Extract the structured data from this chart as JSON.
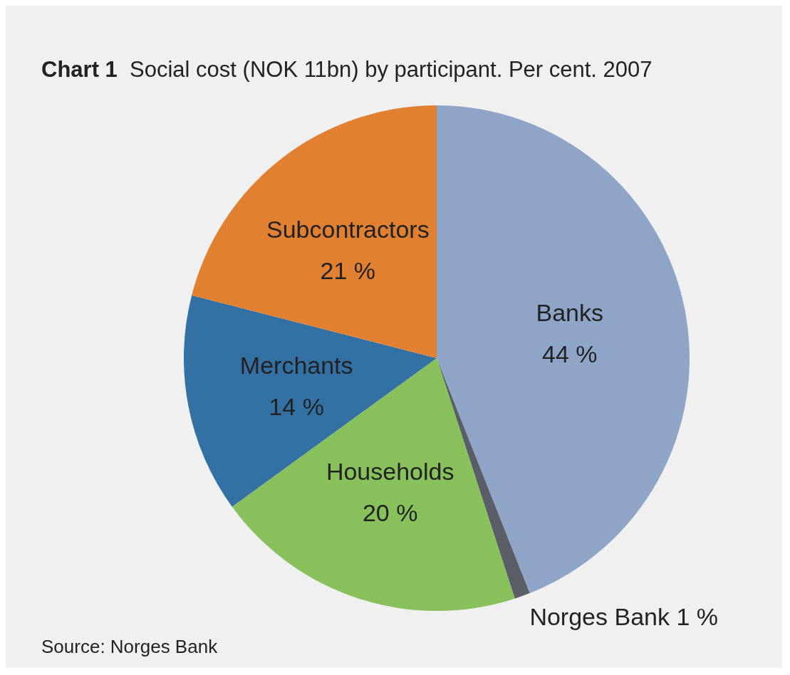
{
  "chart_data": {
    "type": "pie",
    "title": "Chart 1",
    "subtitle": "Social cost (NOK 11bn) by participant. Per cent. 2007",
    "categories": [
      "Banks",
      "Norges Bank",
      "Households",
      "Merchants",
      "Subcontractors"
    ],
    "values": [
      44,
      1,
      20,
      14,
      21
    ],
    "colors": [
      "#8fa5c8",
      "#5a5e66",
      "#88c05c",
      "#3370a4",
      "#e08030"
    ],
    "value_labels": [
      "44 %",
      "1 %",
      "20 %",
      "14 %",
      "21 %"
    ],
    "legend": false,
    "annotations": [
      "Source: Norges Bank"
    ]
  }
}
